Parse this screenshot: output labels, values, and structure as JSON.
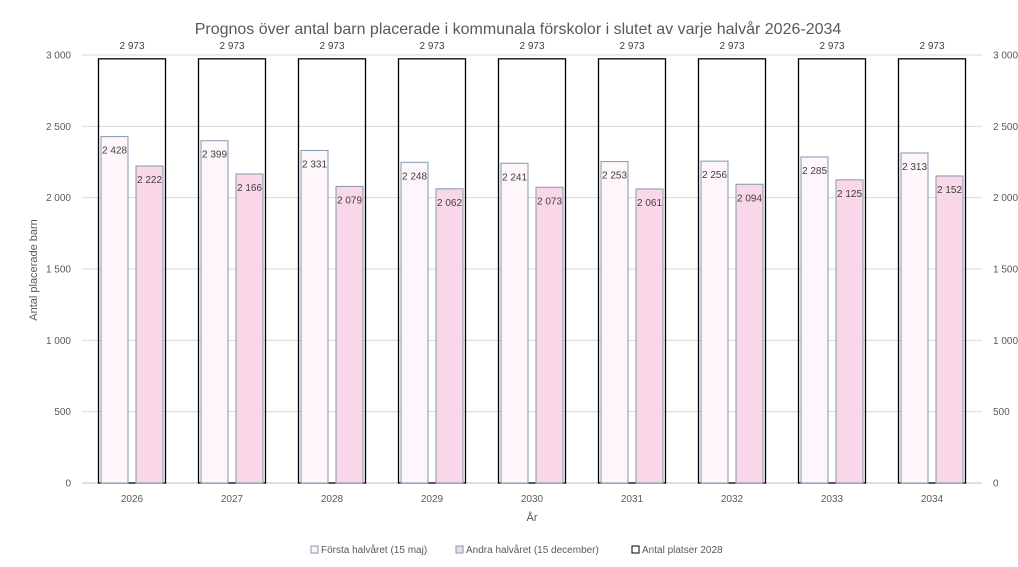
{
  "chart_data": {
    "type": "bar",
    "title": "Prognos över antal barn placerade i kommunala förskolor i slutet av varje halvår 2026-2034",
    "xlabel": "År",
    "ylabel": "Antal placerade barn",
    "ylim": [
      0,
      3000
    ],
    "yticks": [
      "0",
      "500",
      "1 000",
      "1 500",
      "2 000",
      "2 500",
      "3 000"
    ],
    "ytick_values": [
      0,
      500,
      1000,
      1500,
      2000,
      2500,
      3000
    ],
    "secondary_yticks": [
      "0",
      "500",
      "1 000",
      "1 500",
      "2 000",
      "2 500",
      "3 000"
    ],
    "grid": true,
    "legend_position": "bottom",
    "categories": [
      "2026",
      "2027",
      "2028",
      "2029",
      "2030",
      "2031",
      "2032",
      "2033",
      "2034"
    ],
    "series": [
      {
        "name": "Första halvåret (15 maj)",
        "values": [
          2428,
          2399,
          2331,
          2248,
          2241,
          2253,
          2256,
          2285,
          2313
        ],
        "labels": [
          "2 428",
          "2 399",
          "2 331",
          "2 248",
          "2 241",
          "2 253",
          "2 256",
          "2 285",
          "2 313"
        ],
        "fill": "#FEF6FA",
        "stroke": "#8497B0"
      },
      {
        "name": "Andra halvåret (15 december)",
        "values": [
          2222,
          2166,
          2079,
          2062,
          2073,
          2061,
          2094,
          2125,
          2152
        ],
        "labels": [
          "2 222",
          "2 166",
          "2 079",
          "2 062",
          "2 073",
          "2 061",
          "2 094",
          "2 125",
          "2 152"
        ],
        "fill": "#FAD7E8",
        "stroke": "#8497B0"
      },
      {
        "name": "Antal platser 2028",
        "values": [
          2973,
          2973,
          2973,
          2973,
          2973,
          2973,
          2973,
          2973,
          2973
        ],
        "labels": [
          "2 973",
          "2 973",
          "2 973",
          "2 973",
          "2 973",
          "2 973",
          "2 973",
          "2 973",
          "2 973"
        ],
        "fill": "none",
        "stroke": "#000000"
      }
    ]
  }
}
